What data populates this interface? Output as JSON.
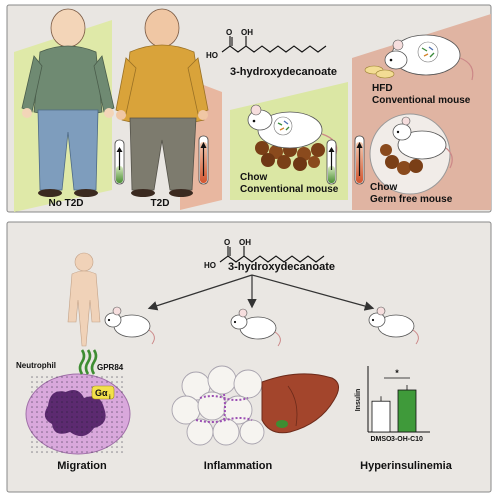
{
  "top_panel": {
    "compound_label": "3-hydroxydecanoate",
    "formula": {
      "oh_left": "HO",
      "oh_top": "OH",
      "o_top": "O"
    },
    "people": [
      {
        "label": "No T2D"
      },
      {
        "label": "T2D"
      }
    ],
    "mice": [
      {
        "label_line1": "Chow",
        "label_line2": "Conventional mouse"
      },
      {
        "label_line1": "HFD",
        "label_line2": "Conventional mouse"
      },
      {
        "label_line1": "Chow",
        "label_line2": "Germ free mouse"
      }
    ]
  },
  "bottom_panel": {
    "compound_label": "3-hydroxydecanoate",
    "formula": {
      "oh_left": "HO",
      "oh_top": "OH",
      "o_top": "O"
    },
    "neutrophil": {
      "label": "Neutrophil",
      "receptor": "GPR84",
      "protein": "Gα",
      "protein_sub": "i"
    },
    "outcomes": [
      {
        "label": "Migration"
      },
      {
        "label": "Inflammation"
      },
      {
        "label": "Hyperinsulinemia"
      }
    ]
  },
  "chart_data": {
    "type": "bar",
    "ylabel": "Insulin",
    "categories": [
      "DMSO",
      "3-OH-C10"
    ],
    "values": [
      0.55,
      0.75
    ],
    "significance": "*",
    "colors": [
      "#ffffff",
      "#3f9a3a"
    ]
  }
}
